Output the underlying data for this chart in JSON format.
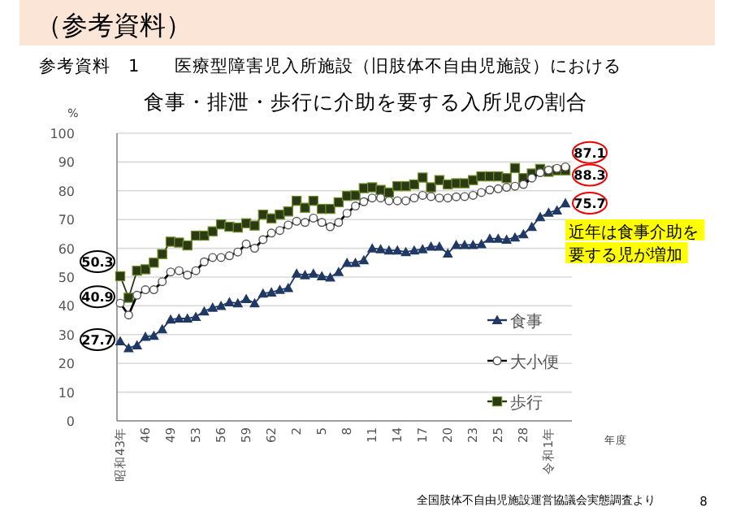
{
  "chart_data": {
    "type": "line",
    "title": "食事・排泄・歩行に介助を要する入所児の割合",
    "subtitle": "参考資料　1　　医療型障害児入所施設（旧肢体不自由児施設）における",
    "ylabel": "%",
    "xlabel": "年度",
    "annotations": [
      "（参考資料）",
      "近年は食事介助を要する児が増加",
      "全国肢体不自由児施設運営協議会実態調査より",
      "8"
    ],
    "categories": [
      "昭和43年",
      null,
      null,
      "46",
      null,
      null,
      "49",
      null,
      null,
      "53",
      null,
      null,
      "56",
      null,
      null,
      "59",
      null,
      null,
      "62",
      null,
      null,
      "2",
      null,
      null,
      "5",
      null,
      null,
      "8",
      null,
      null,
      "11",
      null,
      null,
      "14",
      null,
      null,
      "17",
      null,
      null,
      "20",
      null,
      null,
      "23",
      null,
      null,
      "25",
      null,
      null,
      "28",
      null,
      null,
      "令和1年",
      null,
      null
    ],
    "ylim": [
      0,
      100
    ],
    "yticks": [
      0,
      10,
      20,
      30,
      40,
      50,
      60,
      70,
      80,
      90,
      100
    ],
    "grid": "y",
    "legend": "bottom right",
    "line_style": "solid",
    "series": [
      {
        "name": "食事",
        "color": "#1f3864",
        "marker": "triangle",
        "values": [
          27.7,
          25.3,
          26.3,
          29.3,
          29.6,
          31.9,
          35.3,
          35.6,
          35.6,
          36.2,
          38.1,
          39.4,
          40,
          41.3,
          40.9,
          42.4,
          40.9,
          44.3,
          44.7,
          45.6,
          46.2,
          51.2,
          50.7,
          51.2,
          50.3,
          49.9,
          51.8,
          55,
          55,
          55.9,
          60,
          59.7,
          59.3,
          59.3,
          58.7,
          59.3,
          59.7,
          60.6,
          60.6,
          58.2,
          61.2,
          61.2,
          61.2,
          61.5,
          63.4,
          63.4,
          63,
          63.8,
          64.9,
          67.5,
          70.9,
          72.4,
          73.2,
          75.7
        ],
        "value_labels": [
          "27.7",
          null,
          null,
          null,
          null,
          null,
          null,
          null,
          null,
          null,
          null,
          null,
          null,
          null,
          null,
          null,
          null,
          null,
          null,
          null,
          null,
          null,
          null,
          null,
          null,
          null,
          null,
          null,
          null,
          null,
          null,
          null,
          null,
          null,
          null,
          null,
          null,
          null,
          null,
          null,
          null,
          null,
          null,
          null,
          null,
          null,
          null,
          null,
          null,
          null,
          null,
          null,
          null,
          "75.7"
        ]
      },
      {
        "name": "大小便",
        "color": "#000000",
        "marker": "circle",
        "values": [
          40.9,
          36.8,
          43.7,
          45.6,
          45.6,
          48.4,
          51.8,
          52.2,
          50.7,
          52.2,
          55.3,
          56.8,
          56.8,
          57.4,
          58.7,
          61.5,
          60,
          63,
          65.3,
          66.2,
          68.1,
          69.4,
          69,
          70.5,
          69,
          67.5,
          69,
          72.2,
          74.7,
          76.2,
          77.5,
          77.5,
          76.5,
          76.5,
          76.5,
          77.5,
          78.4,
          78,
          77.5,
          77.5,
          77.9,
          78,
          78.4,
          79.4,
          80.3,
          80.7,
          81.2,
          81.6,
          82.2,
          84.4,
          86.3,
          87.2,
          87.8,
          88.3
        ],
        "value_labels": [
          "40.9",
          null,
          null,
          null,
          null,
          null,
          null,
          null,
          null,
          null,
          null,
          null,
          null,
          null,
          null,
          null,
          null,
          null,
          null,
          null,
          null,
          null,
          null,
          null,
          null,
          null,
          null,
          null,
          null,
          null,
          null,
          null,
          null,
          null,
          null,
          null,
          null,
          null,
          null,
          null,
          null,
          null,
          null,
          null,
          null,
          null,
          null,
          null,
          null,
          null,
          null,
          null,
          null,
          "88.3"
        ]
      },
      {
        "name": "歩行",
        "color": "#2b3a14",
        "marker": "square",
        "values": [
          50.3,
          42.8,
          52.2,
          52.7,
          55,
          58,
          62.3,
          62,
          61,
          64.4,
          64.4,
          65.9,
          68.3,
          67.5,
          67.2,
          68.7,
          67.9,
          71.7,
          70.4,
          71.7,
          72.8,
          76.5,
          74.1,
          76.5,
          73.7,
          73.7,
          76,
          78.2,
          78.4,
          80.9,
          81.2,
          80.3,
          79.4,
          81.6,
          81.6,
          82.2,
          84.6,
          81.2,
          83.7,
          82.2,
          82.6,
          82.6,
          83.7,
          85,
          85,
          85,
          84.4,
          87.9,
          84.4,
          86,
          87.6,
          86.6,
          87.1,
          87.1
        ],
        "value_labels": [
          "50.3",
          null,
          null,
          null,
          null,
          null,
          null,
          null,
          null,
          null,
          null,
          null,
          null,
          null,
          null,
          null,
          null,
          null,
          null,
          null,
          null,
          null,
          null,
          null,
          null,
          null,
          null,
          null,
          null,
          null,
          null,
          null,
          null,
          null,
          null,
          null,
          null,
          null,
          null,
          null,
          null,
          null,
          null,
          null,
          null,
          null,
          null,
          null,
          null,
          null,
          null,
          null,
          null,
          "87.1"
        ]
      }
    ]
  }
}
